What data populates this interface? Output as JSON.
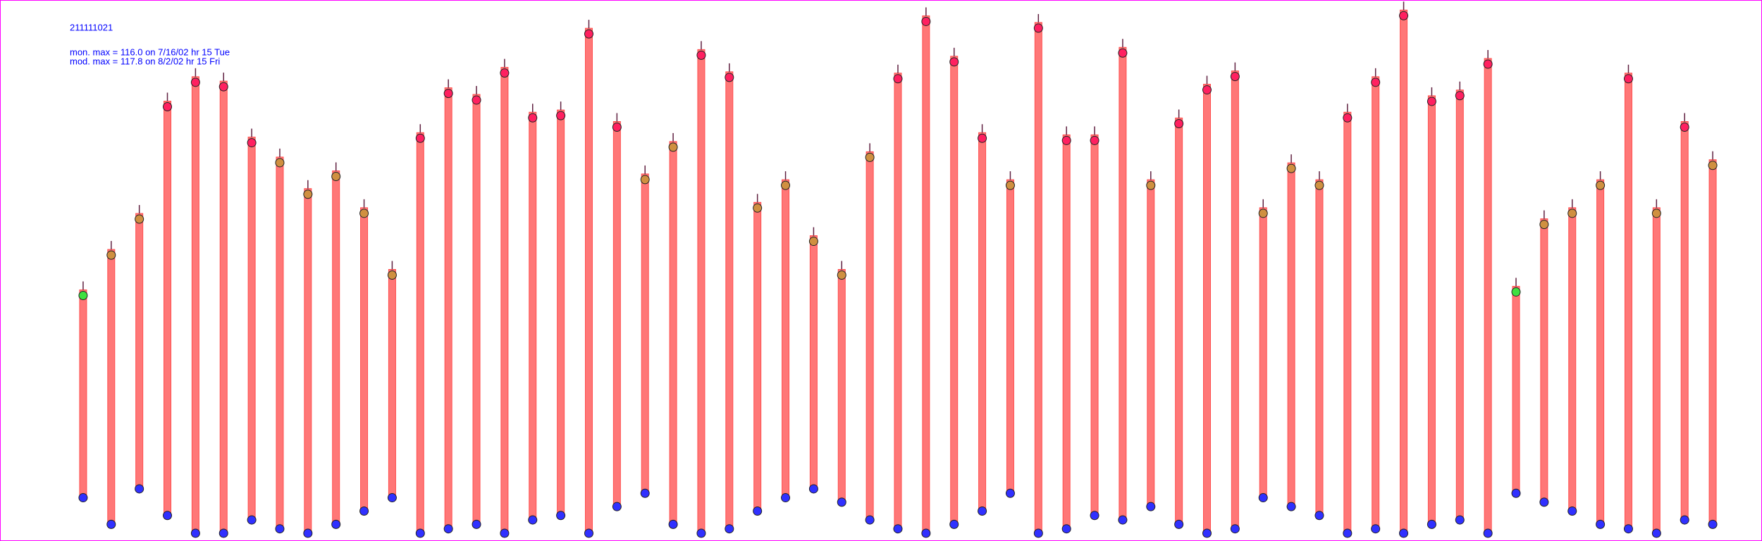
{
  "chart_data": {
    "type": "range",
    "title": "211111021",
    "annotations": [
      "mon. max =  116.0 on 7/16/02 hr 15 Tue",
      "mod. max =  117.8 on 8/2/02 hr 15 Fri"
    ],
    "categories": [
      null,
      null,
      null,
      null,
      null,
      null,
      null,
      null,
      null,
      null,
      null,
      null,
      null,
      null,
      null,
      null,
      null,
      null,
      null,
      null,
      null,
      null,
      null,
      null,
      null,
      null,
      null,
      null,
      null,
      null,
      null,
      null,
      null,
      null,
      null,
      null,
      null,
      null,
      null,
      null,
      null,
      null,
      null,
      null,
      null,
      null,
      null,
      null,
      null,
      null,
      null,
      null,
      null,
      null,
      null,
      null,
      null,
      null,
      null
    ],
    "series": [
      {
        "color": "#ff6060",
        "low": [
          8,
          2,
          10,
          4,
          0,
          0,
          3,
          1,
          0,
          2,
          5,
          8,
          0,
          1,
          2,
          0,
          3,
          4,
          0,
          6,
          9,
          2,
          0,
          1,
          5,
          8,
          10,
          7,
          3,
          1,
          0,
          2,
          5,
          9,
          0,
          1,
          4,
          3,
          6,
          2,
          0,
          1,
          8,
          6,
          4,
          0,
          1,
          0,
          2,
          3,
          0,
          9,
          7,
          5,
          2,
          1,
          0,
          3,
          2
        ],
        "high": [
          54.8,
          63.9,
          72.0,
          97.3,
          102.8,
          101.8,
          89.2,
          84.7,
          77.6,
          81.6,
          73.3,
          59.4,
          90.2,
          100.3,
          98.8,
          104.9,
          94.8,
          95.3,
          113.7,
          92.7,
          80.9,
          88.2,
          108.9,
          103.9,
          74.5,
          79.6,
          67.0,
          59.4,
          85.9,
          103.6,
          116.5,
          107.4,
          90.2,
          79.6,
          115.0,
          89.7,
          89.7,
          109.4,
          79.6,
          93.5,
          101.1,
          104.1,
          73.3,
          83.4,
          79.6,
          94.8,
          102.8,
          117.8,
          98.5,
          99.8,
          106.9,
          55.6,
          70.8,
          73.3,
          79.6,
          103.6,
          73.3,
          92.7,
          84.1
        ]
      }
    ],
    "marker_colors": [
      "#3030ff",
      "#40e040",
      "#d09040",
      "#ff2060"
    ],
    "ylim": [
      0,
      118
    ]
  }
}
